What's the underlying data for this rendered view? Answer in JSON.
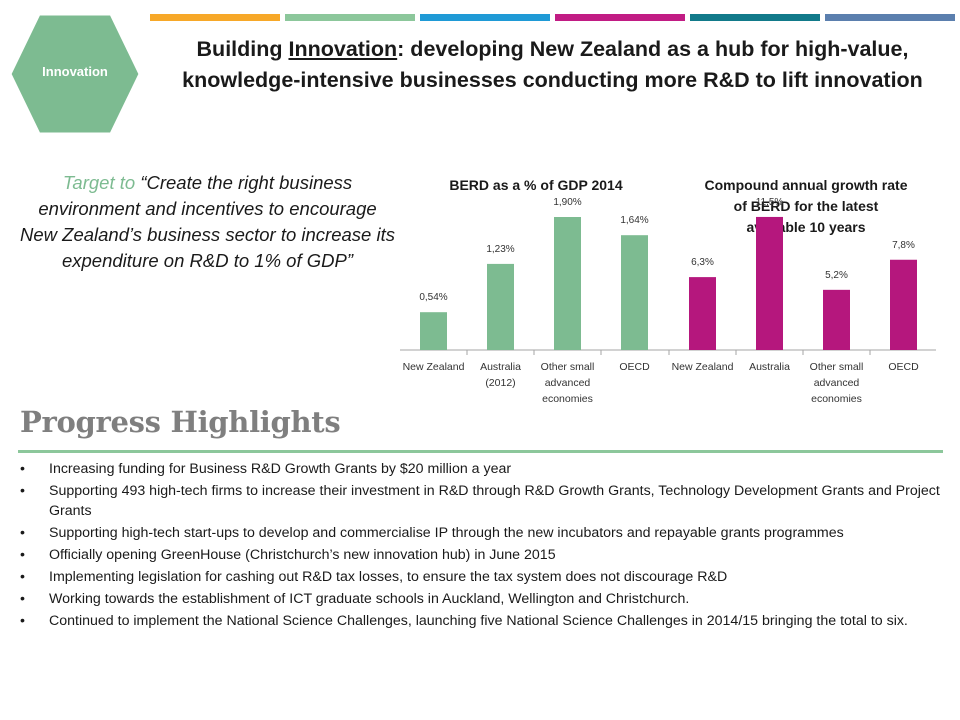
{
  "badge": {
    "label": "Innovation",
    "color": "#7dbb91"
  },
  "header": {
    "title_prefix": "Building ",
    "title_underlined": "Innovation",
    "title_rest": ": developing New Zealand as a hub for high-value, knowledge-intensive businesses conducting more R&D to lift innovation"
  },
  "top_bar_colors": [
    "#f7a828",
    "#8cc79b",
    "#1f9ad6",
    "#c11c84",
    "#127a8a",
    "#5b7fae"
  ],
  "target": {
    "lead": "Target to ",
    "quote": "“Create the right business environment and incentives to encourage New Zealand’s business sector to increase its expenditure on R&D to 1% of GDP”"
  },
  "chart_data": [
    {
      "type": "bar",
      "title": "BERD as a % of GDP 2014",
      "categories": [
        "New Zealand",
        "Australia (2012)",
        "Other small advanced economies",
        "OECD"
      ],
      "values": [
        0.54,
        1.23,
        1.9,
        1.64
      ],
      "data_labels": [
        "0,54%",
        "1,23%",
        "1,90%",
        "1,64%"
      ],
      "color": "#7dbb91",
      "ylim": [
        0,
        2.0
      ],
      "grid": false
    },
    {
      "type": "bar",
      "title": "Compound annual growth rate of BERD for the latest available 10 years",
      "categories": [
        "New Zealand",
        "Australia",
        "Other small advanced economies",
        "OECD"
      ],
      "values": [
        6.3,
        11.5,
        5.2,
        7.8
      ],
      "data_labels": [
        "6,3%",
        "11,5%",
        "5,2%",
        "7,8%"
      ],
      "color": "#b5177d",
      "ylim": [
        0,
        12.1
      ],
      "grid": false
    }
  ],
  "progress": {
    "heading": "Progress Highlights",
    "bullet_char": "•",
    "items": [
      "Increasing funding for Business R&D Growth Grants by $20 million a year",
      "Supporting 493 high-tech firms to increase their investment in R&D through R&D Growth Grants, Technology Development Grants and Project Grants",
      "Supporting high-tech start-ups to develop and commercialise IP through the new incubators and repayable grants programmes",
      "Officially opening GreenHouse (Christchurch’s new innovation hub) in June 2015",
      "Implementing legislation for cashing out R&D tax losses, to ensure the tax system does not discourage R&D",
      "Working towards the establishment of ICT graduate schools in Auckland, Wellington and Christchurch.",
      "Continued to implement the National Science Challenges, launching five National Science Challenges in 2014/15 bringing the total to six."
    ]
  }
}
